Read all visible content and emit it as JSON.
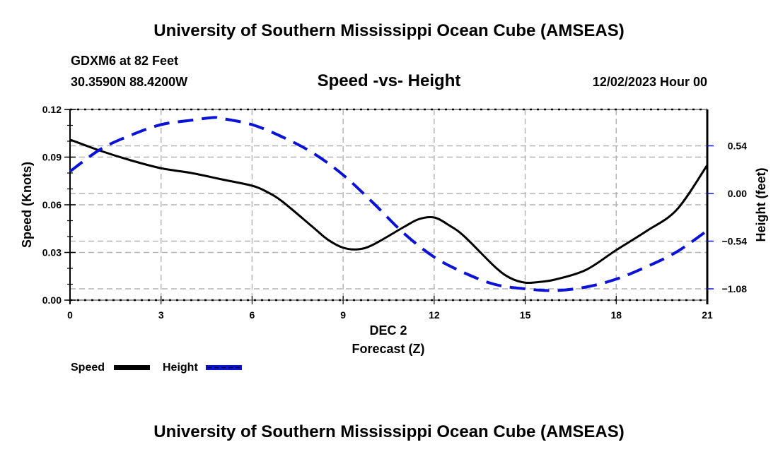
{
  "header": {
    "main_title": "University of Southern Mississippi Ocean Cube (AMSEAS)",
    "station": "GDXM6 at 82 Feet",
    "coordinates": "30.3590N  88.4200W",
    "subtitle": "Speed -vs- Height",
    "datetime": "12/02/2023 Hour 00"
  },
  "footer": {
    "title": "University of Southern Mississippi Ocean Cube (AMSEAS)"
  },
  "colors": {
    "speed": "#000000",
    "height": "#0a12d8",
    "grid": "#b4b4b4"
  },
  "chart_data": {
    "type": "line",
    "title": "Speed -vs- Height",
    "xlabel": "Forecast (Z)",
    "xlabel_date": "DEC 2",
    "ylabel": "Speed (Knots)",
    "y2label": "Height (feet)",
    "xlim": [
      0,
      21
    ],
    "ylim": [
      0,
      0.12
    ],
    "y2lim": [
      -1.26,
      1.2
    ],
    "x_ticks": [
      0,
      3,
      6,
      9,
      12,
      15,
      18,
      21
    ],
    "x_tick_labels": [
      "0",
      "3",
      "6",
      "9",
      "12",
      "15",
      "18",
      "21"
    ],
    "y_ticks": [
      0,
      0.03,
      0.06,
      0.09,
      0.12
    ],
    "y_tick_labels": [
      "0.00",
      "0.03",
      "0.06",
      "0.09",
      "0.12"
    ],
    "y2_ticks": [
      0.54,
      0,
      -0.54,
      -1.08
    ],
    "y2_tick_labels": [
      "0.54",
      "0.00",
      "−0.54",
      "−1.08"
    ],
    "grid": true,
    "legend": "bottom-left",
    "series": [
      {
        "name": "Speed",
        "axis": "left",
        "style": "solid",
        "x": [
          0,
          1,
          2,
          3,
          4,
          5,
          6,
          6.5,
          7,
          8,
          8.5,
          9,
          9.5,
          10,
          11,
          11.5,
          12,
          12.5,
          13,
          14,
          14.5,
          15,
          15.5,
          16,
          17,
          18,
          19,
          20,
          21
        ],
        "values": [
          0.101,
          0.094,
          0.088,
          0.083,
          0.08,
          0.076,
          0.072,
          0.068,
          0.062,
          0.046,
          0.038,
          0.033,
          0.032,
          0.035,
          0.046,
          0.051,
          0.052,
          0.047,
          0.04,
          0.021,
          0.014,
          0.011,
          0.0115,
          0.013,
          0.019,
          0.0315,
          0.0435,
          0.057,
          0.085
        ]
      },
      {
        "name": "Height",
        "axis": "right",
        "style": "dashed",
        "x": [
          0,
          1,
          2,
          3,
          4,
          4.7,
          5,
          6,
          7,
          8,
          9,
          10,
          11,
          12,
          13,
          14,
          15,
          16,
          17,
          18,
          19,
          20,
          21
        ],
        "values": [
          0.25,
          0.5,
          0.66,
          0.78,
          0.83,
          0.86,
          0.85,
          0.78,
          0.64,
          0.46,
          0.21,
          -0.11,
          -0.45,
          -0.72,
          -0.9,
          -1.03,
          -1.08,
          -1.1,
          -1.06,
          -0.97,
          -0.83,
          -0.66,
          -0.42
        ]
      }
    ]
  }
}
